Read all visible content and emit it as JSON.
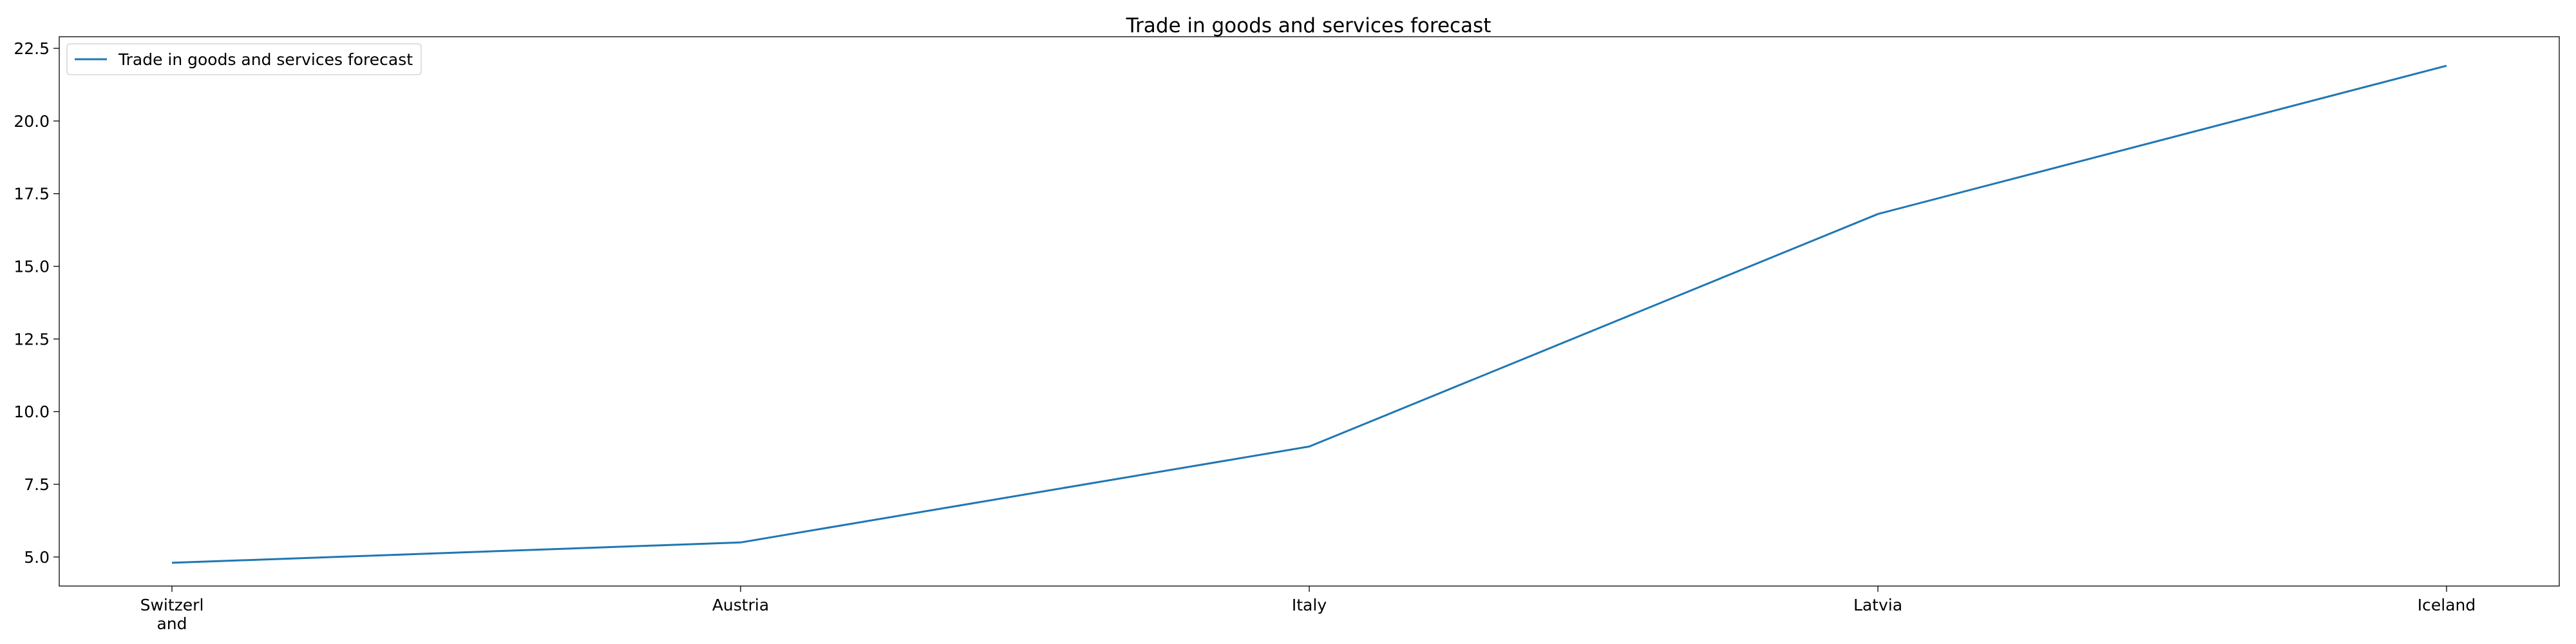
{
  "chart_data": {
    "type": "line",
    "title": "Trade in goods and services forecast",
    "xlabel": "",
    "ylabel": "",
    "categories": [
      [
        "Switzerl",
        "and"
      ],
      [
        "Austria"
      ],
      [
        "Italy"
      ],
      [
        "Latvia"
      ],
      [
        "Iceland"
      ]
    ],
    "series": [
      {
        "name": "Trade in goods and services forecast",
        "values": [
          4.8,
          5.5,
          8.8,
          16.8,
          21.9
        ],
        "color": "#1f77b4"
      }
    ],
    "ylim": [
      4.0,
      22.9
    ],
    "yticks": [
      5.0,
      7.5,
      10.0,
      12.5,
      15.0,
      17.5,
      20.0,
      22.5
    ],
    "ytick_labels": [
      "5.0",
      "7.5",
      "10.0",
      "12.5",
      "15.0",
      "17.5",
      "20.0",
      "22.5"
    ],
    "grid": false,
    "legend_position": "top-left"
  }
}
